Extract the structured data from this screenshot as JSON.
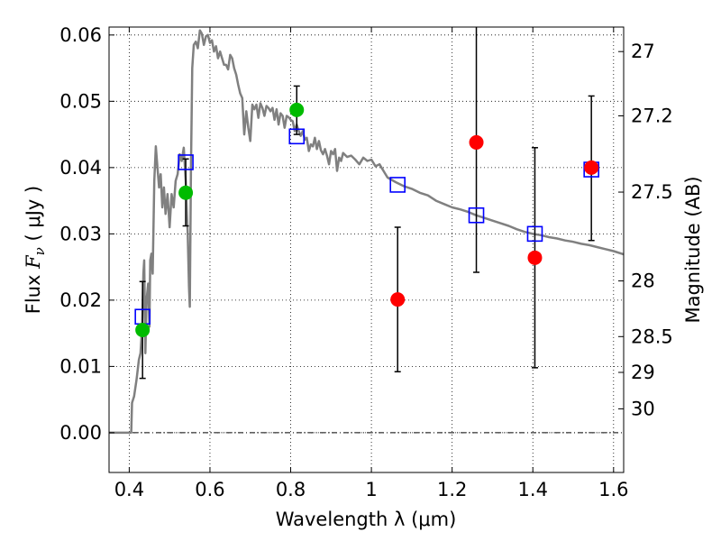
{
  "chart_data": {
    "type": "scatter",
    "title": "",
    "xlabel": "Wavelength  λ (μm)",
    "ylabel": "Flux  F_ν  ( μJy )",
    "ylabel_parts": {
      "pre": "Flux  ",
      "sym": "F",
      "sub": "ν",
      "post": "  ( μJy )"
    },
    "ylabel_right": "Magnitude (AB)",
    "xlim": [
      0.35,
      1.625
    ],
    "ylim": [
      -0.006,
      0.0612
    ],
    "grid": true,
    "grid_style": "dotted",
    "x_ticks": [
      {
        "value": 0.4,
        "label": "0.4"
      },
      {
        "value": 0.6,
        "label": "0.6"
      },
      {
        "value": 0.8,
        "label": "0.8"
      },
      {
        "value": 1.0,
        "label": "1"
      },
      {
        "value": 1.2,
        "label": "1.2"
      },
      {
        "value": 1.4,
        "label": "1.4"
      },
      {
        "value": 1.6,
        "label": "1.6"
      }
    ],
    "y_ticks": [
      {
        "value": 0.0,
        "label": "0.00"
      },
      {
        "value": 0.01,
        "label": "0.01"
      },
      {
        "value": 0.02,
        "label": "0.02"
      },
      {
        "value": 0.03,
        "label": "0.03"
      },
      {
        "value": 0.04,
        "label": "0.04"
      },
      {
        "value": 0.05,
        "label": "0.05"
      },
      {
        "value": 0.06,
        "label": "0.06"
      }
    ],
    "right_ticks": [
      {
        "flux": 0.0575,
        "label": "27"
      },
      {
        "flux": 0.0478,
        "label": "27.2"
      },
      {
        "flux": 0.0363,
        "label": "27.5"
      },
      {
        "flux": 0.0229,
        "label": "28"
      },
      {
        "flux": 0.0145,
        "label": "28.5"
      },
      {
        "flux": 0.0091,
        "label": "29"
      },
      {
        "flux": 0.0036,
        "label": "30"
      }
    ],
    "colors": {
      "model": "#808080",
      "model_points": "#0000ff",
      "detections": "#00bb00",
      "low_sn": "#ff0000",
      "errorbar": "#000000",
      "zero_line": "#000000"
    },
    "model_spectrum": [
      [
        0.35,
        0.0
      ],
      [
        0.4,
        0.0
      ],
      [
        0.405,
        0.0
      ],
      [
        0.407,
        0.0045
      ],
      [
        0.412,
        0.0055
      ],
      [
        0.418,
        0.008
      ],
      [
        0.424,
        0.011
      ],
      [
        0.428,
        0.012
      ],
      [
        0.432,
        0.016
      ],
      [
        0.435,
        0.024
      ],
      [
        0.437,
        0.026
      ],
      [
        0.44,
        0.012
      ],
      [
        0.443,
        0.02
      ],
      [
        0.447,
        0.0225
      ],
      [
        0.45,
        0.016
      ],
      [
        0.452,
        0.026
      ],
      [
        0.455,
        0.027
      ],
      [
        0.458,
        0.024
      ],
      [
        0.462,
        0.038
      ],
      [
        0.466,
        0.0432
      ],
      [
        0.47,
        0.04
      ],
      [
        0.474,
        0.037
      ],
      [
        0.478,
        0.039
      ],
      [
        0.482,
        0.034
      ],
      [
        0.486,
        0.037
      ],
      [
        0.49,
        0.033
      ],
      [
        0.495,
        0.036
      ],
      [
        0.5,
        0.031
      ],
      [
        0.505,
        0.036
      ],
      [
        0.51,
        0.034
      ],
      [
        0.515,
        0.038
      ],
      [
        0.52,
        0.039
      ],
      [
        0.525,
        0.042
      ],
      [
        0.53,
        0.041
      ],
      [
        0.535,
        0.043
      ],
      [
        0.54,
        0.038
      ],
      [
        0.545,
        0.03
      ],
      [
        0.548,
        0.022
      ],
      [
        0.55,
        0.019
      ],
      [
        0.553,
        0.04
      ],
      [
        0.556,
        0.055
      ],
      [
        0.56,
        0.0585
      ],
      [
        0.565,
        0.059
      ],
      [
        0.57,
        0.058
      ],
      [
        0.575,
        0.0607
      ],
      [
        0.58,
        0.0602
      ],
      [
        0.585,
        0.0585
      ],
      [
        0.59,
        0.0598
      ],
      [
        0.595,
        0.06
      ],
      [
        0.6,
        0.0588
      ],
      [
        0.605,
        0.0592
      ],
      [
        0.61,
        0.0575
      ],
      [
        0.615,
        0.0583
      ],
      [
        0.62,
        0.0565
      ],
      [
        0.625,
        0.0575
      ],
      [
        0.63,
        0.0565
      ],
      [
        0.635,
        0.0555
      ],
      [
        0.64,
        0.0555
      ],
      [
        0.645,
        0.0548
      ],
      [
        0.65,
        0.057
      ],
      [
        0.655,
        0.0565
      ],
      [
        0.66,
        0.055
      ],
      [
        0.665,
        0.054
      ],
      [
        0.67,
        0.0525
      ],
      [
        0.675,
        0.0512
      ],
      [
        0.68,
        0.0505
      ],
      [
        0.685,
        0.045
      ],
      [
        0.69,
        0.0485
      ],
      [
        0.695,
        0.046
      ],
      [
        0.7,
        0.044
      ],
      [
        0.705,
        0.0495
      ],
      [
        0.71,
        0.0488
      ],
      [
        0.715,
        0.0495
      ],
      [
        0.72,
        0.0475
      ],
      [
        0.725,
        0.0497
      ],
      [
        0.73,
        0.049
      ],
      [
        0.735,
        0.0478
      ],
      [
        0.74,
        0.0493
      ],
      [
        0.745,
        0.049
      ],
      [
        0.75,
        0.0485
      ],
      [
        0.755,
        0.049
      ],
      [
        0.76,
        0.0472
      ],
      [
        0.765,
        0.0488
      ],
      [
        0.77,
        0.0465
      ],
      [
        0.775,
        0.0482
      ],
      [
        0.78,
        0.0478
      ],
      [
        0.785,
        0.046
      ],
      [
        0.79,
        0.0478
      ],
      [
        0.795,
        0.0476
      ],
      [
        0.8,
        0.0472
      ],
      [
        0.805,
        0.047
      ],
      [
        0.81,
        0.0455
      ],
      [
        0.815,
        0.0465
      ],
      [
        0.82,
        0.0455
      ],
      [
        0.825,
        0.0448
      ],
      [
        0.83,
        0.0455
      ],
      [
        0.835,
        0.0442
      ],
      [
        0.84,
        0.0445
      ],
      [
        0.845,
        0.0425
      ],
      [
        0.85,
        0.0435
      ],
      [
        0.855,
        0.0432
      ],
      [
        0.86,
        0.0445
      ],
      [
        0.865,
        0.0428
      ],
      [
        0.87,
        0.044
      ],
      [
        0.875,
        0.0426
      ],
      [
        0.88,
        0.042
      ],
      [
        0.885,
        0.0428
      ],
      [
        0.89,
        0.0418
      ],
      [
        0.895,
        0.0405
      ],
      [
        0.9,
        0.0425
      ],
      [
        0.905,
        0.042
      ],
      [
        0.91,
        0.0428
      ],
      [
        0.915,
        0.0395
      ],
      [
        0.92,
        0.0415
      ],
      [
        0.925,
        0.041
      ],
      [
        0.93,
        0.0422
      ],
      [
        0.94,
        0.0416
      ],
      [
        0.95,
        0.0418
      ],
      [
        0.96,
        0.0412
      ],
      [
        0.97,
        0.0405
      ],
      [
        0.98,
        0.0415
      ],
      [
        0.99,
        0.041
      ],
      [
        1.0,
        0.0412
      ],
      [
        1.01,
        0.0402
      ],
      [
        1.02,
        0.0405
      ],
      [
        1.03,
        0.0395
      ],
      [
        1.04,
        0.0385
      ],
      [
        1.06,
        0.0378
      ],
      [
        1.08,
        0.0372
      ],
      [
        1.1,
        0.0368
      ],
      [
        1.12,
        0.0362
      ],
      [
        1.14,
        0.0358
      ],
      [
        1.16,
        0.035
      ],
      [
        1.18,
        0.0345
      ],
      [
        1.2,
        0.034
      ],
      [
        1.22,
        0.0337
      ],
      [
        1.24,
        0.0333
      ],
      [
        1.26,
        0.0328
      ],
      [
        1.28,
        0.0324
      ],
      [
        1.3,
        0.032
      ],
      [
        1.32,
        0.0316
      ],
      [
        1.34,
        0.0312
      ],
      [
        1.36,
        0.0307
      ],
      [
        1.38,
        0.0303
      ],
      [
        1.4,
        0.03
      ],
      [
        1.42,
        0.0298
      ],
      [
        1.44,
        0.0295
      ],
      [
        1.46,
        0.0293
      ],
      [
        1.48,
        0.029
      ],
      [
        1.5,
        0.0288
      ],
      [
        1.52,
        0.0285
      ],
      [
        1.54,
        0.0283
      ],
      [
        1.56,
        0.028
      ],
      [
        1.58,
        0.0277
      ],
      [
        1.6,
        0.0274
      ],
      [
        1.625,
        0.0269
      ]
    ],
    "series": [
      {
        "marker": "open-square",
        "color": "#0000ff",
        "points": [
          {
            "x": 0.433,
            "y": 0.0175
          },
          {
            "x": 0.54,
            "y": 0.0408
          },
          {
            "x": 0.815,
            "y": 0.0447
          },
          {
            "x": 1.065,
            "y": 0.0374
          },
          {
            "x": 1.26,
            "y": 0.0328
          },
          {
            "x": 1.405,
            "y": 0.03
          },
          {
            "x": 1.545,
            "y": 0.0397
          }
        ]
      },
      {
        "marker": "filled-circle",
        "color": "#00bb00",
        "points": [
          {
            "x": 0.433,
            "y": 0.0155,
            "ylow": 0.0082,
            "yhigh": 0.0228
          },
          {
            "x": 0.54,
            "y": 0.0362,
            "ylow": 0.0312,
            "yhigh": 0.0413
          },
          {
            "x": 0.815,
            "y": 0.0487,
            "ylow": 0.045,
            "yhigh": 0.0523
          }
        ]
      },
      {
        "marker": "filled-circle",
        "color": "#ff0000",
        "points": [
          {
            "x": 1.065,
            "y": 0.0201,
            "ylow": 0.0092,
            "yhigh": 0.031
          },
          {
            "x": 1.26,
            "y": 0.0438,
            "ylow": 0.0242,
            "yhigh": 0.062
          },
          {
            "x": 1.405,
            "y": 0.0264,
            "ylow": 0.0098,
            "yhigh": 0.043
          },
          {
            "x": 1.545,
            "y": 0.04,
            "ylow": 0.029,
            "yhigh": 0.0508
          }
        ]
      }
    ]
  }
}
